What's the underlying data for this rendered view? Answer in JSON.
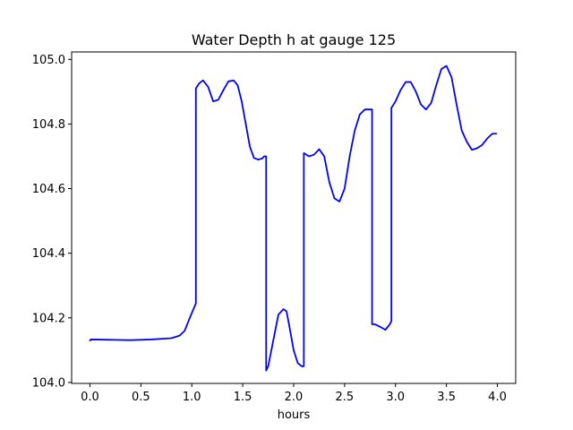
{
  "chart_data": {
    "type": "line",
    "title": "Water Depth h at gauge 125",
    "xlabel": "hours",
    "ylabel": "",
    "xlim": [
      -0.18,
      4.18
    ],
    "ylim": [
      103.997,
      105.023
    ],
    "xticks": [
      0.0,
      0.5,
      1.0,
      1.5,
      2.0,
      2.5,
      3.0,
      3.5,
      4.0
    ],
    "xtick_labels": [
      "0.0",
      "0.5",
      "1.0",
      "1.5",
      "2.0",
      "2.5",
      "3.0",
      "3.5",
      "4.0"
    ],
    "yticks": [
      104.0,
      104.2,
      104.4,
      104.6,
      104.8,
      105.0
    ],
    "ytick_labels": [
      "104.0",
      "104.2",
      "104.4",
      "104.6",
      "104.8",
      "105.0"
    ],
    "grid": false,
    "series": [
      {
        "color": "#0000ff",
        "x": [
          0.0,
          0.01,
          0.2,
          0.4,
          0.6,
          0.8,
          0.88,
          0.93,
          0.98,
          1.02,
          1.04,
          1.04,
          1.07,
          1.11,
          1.16,
          1.21,
          1.26,
          1.31,
          1.36,
          1.41,
          1.45,
          1.49,
          1.53,
          1.57,
          1.61,
          1.65,
          1.69,
          1.71,
          1.73,
          1.73,
          1.75,
          1.8,
          1.85,
          1.9,
          1.93,
          1.96,
          2.0,
          2.04,
          2.08,
          2.1,
          2.1,
          2.15,
          2.2,
          2.25,
          2.3,
          2.35,
          2.4,
          2.45,
          2.5,
          2.55,
          2.6,
          2.65,
          2.7,
          2.74,
          2.77,
          2.77,
          2.8,
          2.85,
          2.9,
          2.94,
          2.96,
          2.96,
          3.0,
          3.05,
          3.1,
          3.15,
          3.2,
          3.25,
          3.3,
          3.35,
          3.4,
          3.45,
          3.5,
          3.55,
          3.6,
          3.65,
          3.7,
          3.75,
          3.8,
          3.85,
          3.9,
          3.95,
          3.99
        ],
        "y": [
          104.13,
          104.133,
          104.132,
          104.131,
          104.133,
          104.137,
          104.145,
          104.16,
          104.2,
          104.23,
          104.245,
          104.91,
          104.925,
          104.935,
          104.915,
          104.87,
          104.875,
          104.905,
          104.932,
          104.935,
          104.92,
          104.87,
          104.8,
          104.73,
          104.695,
          104.69,
          104.693,
          104.7,
          104.7,
          104.037,
          104.05,
          104.13,
          104.21,
          104.227,
          104.22,
          104.17,
          104.1,
          104.06,
          104.05,
          104.05,
          104.71,
          104.7,
          104.705,
          104.722,
          104.7,
          104.62,
          104.57,
          104.56,
          104.6,
          104.7,
          104.78,
          104.83,
          104.845,
          104.845,
          104.845,
          104.18,
          104.18,
          104.172,
          104.163,
          104.178,
          104.19,
          104.85,
          104.87,
          104.905,
          104.93,
          104.93,
          104.9,
          104.86,
          104.845,
          104.865,
          104.92,
          104.97,
          104.98,
          104.945,
          104.86,
          104.78,
          104.745,
          104.72,
          104.725,
          104.735,
          104.755,
          104.77,
          104.77
        ]
      }
    ]
  }
}
